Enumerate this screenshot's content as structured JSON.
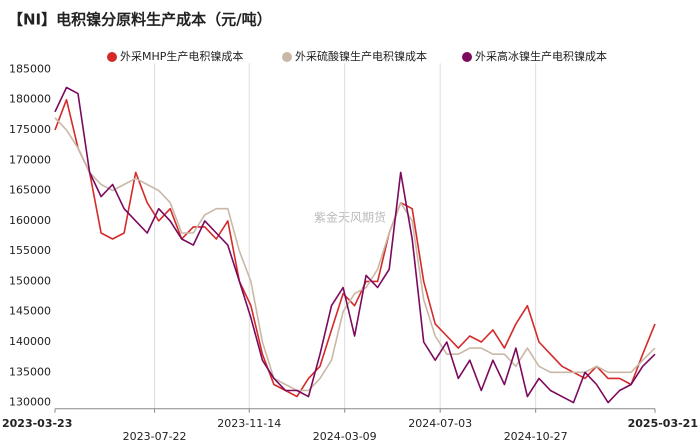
{
  "chart_data": {
    "type": "line",
    "title": "【NI】电积镍分原料生产成本（元/吨）",
    "watermark": "紫金天风期货",
    "x": [
      "2023-03-23",
      "2023-04-06",
      "2023-04-20",
      "2023-05-04",
      "2023-05-18",
      "2023-06-01",
      "2023-06-15",
      "2023-06-29",
      "2023-07-13",
      "2023-07-27",
      "2023-08-10",
      "2023-08-24",
      "2023-09-07",
      "2023-09-21",
      "2023-10-05",
      "2023-10-19",
      "2023-11-02",
      "2023-11-16",
      "2023-11-30",
      "2023-12-14",
      "2023-12-28",
      "2024-01-11",
      "2024-01-25",
      "2024-02-08",
      "2024-02-22",
      "2024-03-07",
      "2024-03-21",
      "2024-04-04",
      "2024-04-18",
      "2024-05-02",
      "2024-05-16",
      "2024-05-30",
      "2024-06-13",
      "2024-06-27",
      "2024-07-11",
      "2024-07-25",
      "2024-08-08",
      "2024-08-22",
      "2024-09-05",
      "2024-09-19",
      "2024-10-03",
      "2024-10-17",
      "2024-10-31",
      "2024-11-14",
      "2024-11-28",
      "2024-12-12",
      "2024-12-26",
      "2025-01-09",
      "2025-01-23",
      "2025-02-06",
      "2025-02-20",
      "2025-03-06",
      "2025-03-21"
    ],
    "series": [
      {
        "name": "外采MHP生产电积镍成本",
        "color": "#d42a2a",
        "values": [
          175000,
          180000,
          172000,
          168000,
          158000,
          157000,
          158000,
          168000,
          163000,
          160000,
          162000,
          157000,
          159000,
          159000,
          157000,
          160000,
          150000,
          146000,
          138000,
          133000,
          132000,
          131000,
          134000,
          136000,
          142000,
          148000,
          146000,
          150000,
          150000,
          158000,
          163000,
          162000,
          150000,
          143000,
          141000,
          139000,
          141000,
          140000,
          142000,
          139000,
          143000,
          146000,
          140000,
          138000,
          136000,
          135000,
          134000,
          136000,
          134000,
          134000,
          133000,
          138000,
          143000
        ]
      },
      {
        "name": "外采硫酸镍生产电积镍成本",
        "color": "#c9b8a6",
        "values": [
          177000,
          175000,
          172000,
          168000,
          166000,
          165000,
          166000,
          167000,
          166000,
          165000,
          163000,
          158000,
          158000,
          161000,
          162000,
          162000,
          155000,
          150000,
          140000,
          134000,
          133000,
          132000,
          132000,
          134000,
          137000,
          145000,
          148000,
          149000,
          152000,
          158000,
          163000,
          160000,
          147000,
          141000,
          138000,
          138000,
          139000,
          139000,
          138000,
          138000,
          136000,
          139000,
          136000,
          135000,
          135000,
          135000,
          135000,
          136000,
          135000,
          135000,
          135000,
          137000,
          139000
        ]
      },
      {
        "name": "外采高冰镍生产电积镍成本",
        "color": "#7b0a5e",
        "values": [
          178000,
          182000,
          181000,
          168000,
          164000,
          166000,
          162000,
          160000,
          158000,
          162000,
          160000,
          157000,
          156000,
          160000,
          158000,
          156000,
          150000,
          144000,
          137000,
          134000,
          132000,
          132000,
          131000,
          138000,
          146000,
          149000,
          141000,
          151000,
          149000,
          152000,
          168000,
          157000,
          140000,
          137000,
          140000,
          134000,
          137000,
          132000,
          137000,
          133000,
          139000,
          131000,
          134000,
          132000,
          131000,
          130000,
          135000,
          133000,
          130000,
          132000,
          133000,
          136000,
          138000
        ]
      }
    ],
    "xlim": [
      "2023-03-23",
      "2025-03-21"
    ],
    "xticks": [
      "2023-03-23",
      "2023-07-22",
      "2023-11-14",
      "2024-03-09",
      "2024-07-03",
      "2024-10-27",
      "2025-03-21"
    ],
    "ylim": [
      129000,
      186000
    ],
    "yticks": [
      130000,
      135000,
      140000,
      145000,
      150000,
      155000,
      160000,
      165000,
      170000,
      175000,
      180000,
      185000
    ],
    "grid": "x",
    "legend": "top"
  }
}
